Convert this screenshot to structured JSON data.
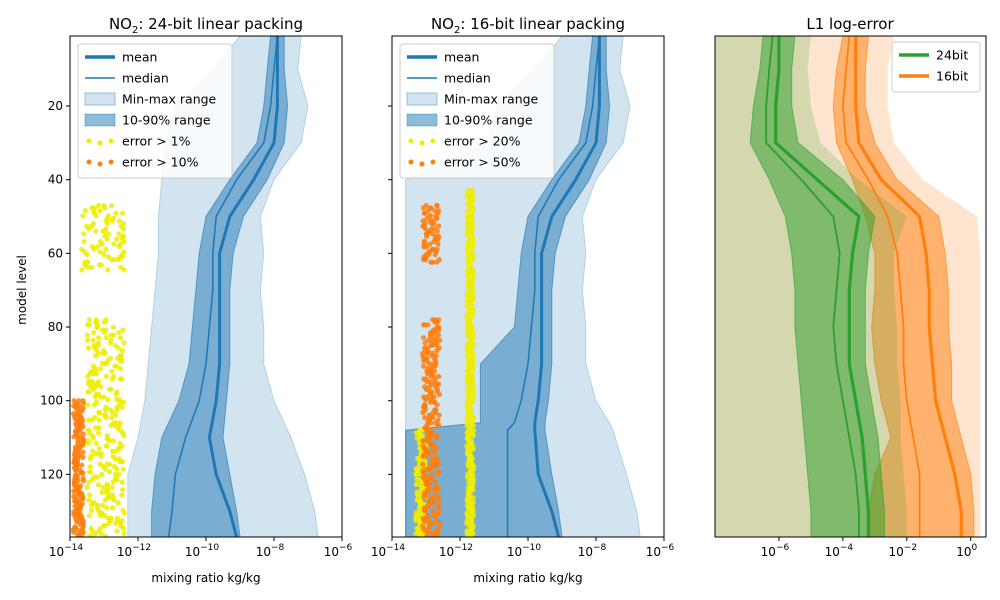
{
  "chart_data": [
    {
      "type": "area",
      "title": "NO₂: 24-bit linear packing",
      "title_main": "NO",
      "title_sub": "2",
      "title_rest": ": 24-bit linear packing",
      "xlabel": "mixing ratio kg/kg",
      "ylabel": "model level",
      "xscale": "log",
      "xlim": [
        1e-14,
        1e-06
      ],
      "ylim": [
        137,
        1
      ],
      "y_inverted": true,
      "xticks": [
        {
          "v": -14,
          "label": "10",
          "exp": "−14"
        },
        {
          "v": -12,
          "label": "10",
          "exp": "−12"
        },
        {
          "v": -10,
          "label": "10",
          "exp": "−10"
        },
        {
          "v": -8,
          "label": "10",
          "exp": "−8"
        },
        {
          "v": -6,
          "label": "10",
          "exp": "−6"
        }
      ],
      "yticks": [
        20,
        40,
        60,
        80,
        100,
        120
      ],
      "legend_placement": "top-left",
      "legend": [
        {
          "label": "mean",
          "kind": "line-thick",
          "color": "#1f77b4"
        },
        {
          "label": "median",
          "kind": "line-thin",
          "color": "#1f77b4"
        },
        {
          "label": "Min-max range",
          "kind": "patch",
          "color": "#1f77b4",
          "opacity": 0.2
        },
        {
          "label": "10-90% range",
          "kind": "patch",
          "color": "#1f77b4",
          "opacity": 0.5
        },
        {
          "label": "error > 1%",
          "kind": "dots",
          "color": "#eded00"
        },
        {
          "label": "error > 10%",
          "kind": "dots",
          "color": "#ff7f0e"
        }
      ],
      "levels": [
        1,
        10,
        20,
        30,
        40,
        50,
        60,
        70,
        80,
        90,
        100,
        110,
        120,
        130,
        137
      ],
      "min_log": [
        -9.0,
        -9.8,
        -10.9,
        -11.2,
        -11.3,
        -11.4,
        -11.4,
        -11.5,
        -11.6,
        -11.7,
        -11.8,
        -12.0,
        -12.3,
        -12.3,
        -12.3
      ],
      "p10_log": [
        -8.1,
        -8.2,
        -8.3,
        -8.5,
        -9.3,
        -10.0,
        -10.2,
        -10.3,
        -10.4,
        -10.5,
        -10.8,
        -11.3,
        -11.5,
        -11.6,
        -11.6
      ],
      "median_log": [
        -7.9,
        -8.0,
        -8.1,
        -8.3,
        -9.1,
        -9.7,
        -9.8,
        -9.8,
        -9.9,
        -10.0,
        -10.2,
        -10.6,
        -10.9,
        -11.0,
        -11.1
      ],
      "mean_log": [
        -7.9,
        -7.9,
        -7.9,
        -8.0,
        -8.6,
        -9.3,
        -9.6,
        -9.6,
        -9.6,
        -9.6,
        -9.7,
        -9.9,
        -9.7,
        -9.3,
        -9.1
      ],
      "p90_log": [
        -7.7,
        -7.7,
        -7.6,
        -7.7,
        -8.2,
        -8.9,
        -9.2,
        -9.3,
        -9.3,
        -9.3,
        -9.4,
        -9.5,
        -9.3,
        -9.1,
        -9.0
      ],
      "max_log": [
        -7.2,
        -7.3,
        -7.0,
        -7.2,
        -8.0,
        -8.4,
        -8.3,
        -8.4,
        -8.3,
        -8.3,
        -8.0,
        -7.5,
        -7.1,
        -6.8,
        -6.7
      ],
      "err_low": {
        "label": "error > 1%",
        "levels": [
          47,
          65
        ],
        "x_log": [
          -13.7,
          -12.4
        ]
      },
      "err_low_b": {
        "label": "error > 1%",
        "levels": [
          78,
          137
        ],
        "x_log": [
          -13.5,
          -12.4
        ]
      },
      "err_high": {
        "label": "error > 10%",
        "levels": [
          100,
          137
        ],
        "x_log": [
          -13.9,
          -13.6
        ]
      }
    },
    {
      "type": "area",
      "title": "NO₂: 16-bit linear packing",
      "title_main": "NO",
      "title_sub": "2",
      "title_rest": ": 16-bit linear packing",
      "xlabel": "mixing ratio kg/kg",
      "xscale": "log",
      "xlim": [
        1e-14,
        1e-06
      ],
      "ylim": [
        137,
        1
      ],
      "xticks": [
        {
          "v": -14,
          "label": "10",
          "exp": "−14"
        },
        {
          "v": -12,
          "label": "10",
          "exp": "−12"
        },
        {
          "v": -10,
          "label": "10",
          "exp": "−10"
        },
        {
          "v": -8,
          "label": "10",
          "exp": "−8"
        },
        {
          "v": -6,
          "label": "10",
          "exp": "−6"
        }
      ],
      "yticks": [
        20,
        40,
        60,
        80,
        100,
        120
      ],
      "legend_placement": "top-left",
      "legend": [
        {
          "label": "mean",
          "kind": "line-thick",
          "color": "#1f77b4"
        },
        {
          "label": "median",
          "kind": "line-thin",
          "color": "#1f77b4"
        },
        {
          "label": "Min-max range",
          "kind": "patch",
          "color": "#1f77b4",
          "opacity": 0.2
        },
        {
          "label": "10-90% range",
          "kind": "patch",
          "color": "#1f77b4",
          "opacity": 0.5
        },
        {
          "label": "error > 20%",
          "kind": "dots",
          "color": "#eded00"
        },
        {
          "label": "error > 50%",
          "kind": "dots",
          "color": "#ff7f0e"
        }
      ],
      "levels": [
        1,
        10,
        20,
        30,
        40,
        50,
        60,
        70,
        80,
        90,
        100,
        106,
        108,
        120,
        130,
        137
      ],
      "min_log": [
        -9.0,
        -9.8,
        -10.9,
        -11.2,
        -13.6,
        -13.6,
        -13.6,
        -13.6,
        -13.6,
        -13.6,
        -13.6,
        -13.6,
        -13.6,
        -13.6,
        -13.6,
        -13.6
      ],
      "p10_log": [
        -8.1,
        -8.2,
        -8.3,
        -8.5,
        -9.3,
        -10.0,
        -10.2,
        -10.3,
        -10.4,
        -11.4,
        -11.4,
        -11.4,
        -13.6,
        -13.6,
        -13.6,
        -13.6
      ],
      "median_log": [
        -7.9,
        -8.0,
        -8.1,
        -8.3,
        -9.1,
        -9.7,
        -9.8,
        -9.8,
        -9.9,
        -10.0,
        -10.2,
        -10.4,
        -10.6,
        -10.6,
        -10.6,
        -10.6
      ],
      "mean_log": [
        -7.9,
        -7.9,
        -7.9,
        -8.0,
        -8.6,
        -9.3,
        -9.6,
        -9.6,
        -9.6,
        -9.6,
        -9.7,
        -9.8,
        -9.8,
        -9.7,
        -9.3,
        -9.1
      ],
      "p90_log": [
        -7.7,
        -7.7,
        -7.6,
        -7.7,
        -8.2,
        -8.9,
        -9.2,
        -9.3,
        -9.3,
        -9.3,
        -9.4,
        -9.5,
        -9.5,
        -9.3,
        -9.1,
        -9.0
      ],
      "max_log": [
        -7.2,
        -7.3,
        -7.0,
        -7.2,
        -8.0,
        -8.4,
        -8.3,
        -8.4,
        -8.3,
        -8.3,
        -8.0,
        -7.6,
        -7.5,
        -7.1,
        -6.8,
        -6.7
      ],
      "err_low": {
        "label": "error > 20%",
        "levels": [
          43,
          137
        ],
        "x_log": [
          -11.8,
          -11.6
        ]
      },
      "err_low_b": {
        "label": "error > 20%",
        "levels": [
          108,
          137
        ],
        "x_log": [
          -13.3,
          -13.0
        ]
      },
      "err_high": {
        "label": "error > 50%",
        "levels": [
          47,
          63
        ],
        "x_log": [
          -13.1,
          -12.6
        ]
      },
      "err_high_b": {
        "label": "error > 50%",
        "levels": [
          78,
          137
        ],
        "x_log": [
          -13.1,
          -12.6
        ]
      }
    },
    {
      "type": "area",
      "title": "L1 log-error",
      "xscale": "log",
      "xlim": [
        1e-08,
        3
      ],
      "ylim": [
        137,
        1
      ],
      "xticks": [
        {
          "v": -6,
          "label": "10",
          "exp": "−6"
        },
        {
          "v": -4,
          "label": "10",
          "exp": "−4"
        },
        {
          "v": -2,
          "label": "10",
          "exp": "−2"
        },
        {
          "v": 0,
          "label": "10",
          "exp": "0"
        }
      ],
      "legend_placement": "top-right",
      "legend": [
        {
          "label": "24bit",
          "kind": "line-thick",
          "color": "#2ca02c"
        },
        {
          "label": "16bit",
          "kind": "line-thick",
          "color": "#ff7f0e"
        }
      ],
      "series": [
        {
          "name": "24bit",
          "color": "#2ca02c",
          "levels": [
            1,
            10,
            20,
            30,
            40,
            50,
            60,
            70,
            80,
            90,
            100,
            110,
            120,
            130,
            137
          ],
          "min_log": [
            -8,
            -8,
            -8,
            -8,
            -8,
            -8,
            -8,
            -8,
            -8,
            -8,
            -8,
            -8,
            -8,
            -8,
            -8
          ],
          "p10_log": [
            -6.5,
            -6.6,
            -6.8,
            -6.9,
            -6.3,
            -5.8,
            -5.6,
            -5.5,
            -5.5,
            -5.4,
            -5.3,
            -5.2,
            -5.1,
            -5.0,
            -5.0
          ],
          "median_log": [
            -6.2,
            -6.3,
            -6.4,
            -6.4,
            -5.3,
            -4.3,
            -4.1,
            -4.2,
            -4.3,
            -4.2,
            -4.0,
            -3.8,
            -3.6,
            -3.5,
            -3.5
          ],
          "mean_log": [
            -6.0,
            -6.0,
            -6.1,
            -6.1,
            -4.8,
            -3.5,
            -3.7,
            -3.8,
            -3.8,
            -3.8,
            -3.6,
            -3.4,
            -3.3,
            -3.2,
            -3.2
          ],
          "p90_log": [
            -5.5,
            -5.6,
            -5.6,
            -5.4,
            -4.0,
            -3.0,
            -3.2,
            -3.3,
            -3.3,
            -3.3,
            -3.1,
            -2.9,
            -2.8,
            -2.7,
            -2.7
          ],
          "max_log": [
            -5.0,
            -5.1,
            -5.0,
            -4.7,
            -3.5,
            -2.0,
            -2.4,
            -2.4,
            -2.3,
            -2.3,
            -2.2,
            -2.2,
            -2.1,
            -2.0,
            -2.0
          ]
        },
        {
          "name": "16bit",
          "color": "#ff7f0e",
          "levels": [
            1,
            10,
            20,
            30,
            40,
            50,
            60,
            70,
            80,
            90,
            100,
            110,
            120,
            130,
            137
          ],
          "min_log": [
            -8,
            -8,
            -8,
            -8,
            -8,
            -8,
            -8,
            -8,
            -8,
            -8,
            -8,
            -8,
            -8,
            -8,
            -8
          ],
          "p10_log": [
            -4.0,
            -4.2,
            -4.3,
            -4.2,
            -3.7,
            -3.3,
            -3.0,
            -3.0,
            -3.1,
            -3.0,
            -2.8,
            -2.5,
            -3.0,
            -3.2,
            -3.2
          ],
          "median_log": [
            -3.8,
            -3.9,
            -4.0,
            -3.9,
            -3.2,
            -2.6,
            -2.3,
            -2.2,
            -2.1,
            -2.1,
            -2.0,
            -1.8,
            -1.6,
            -1.6,
            -1.6
          ],
          "mean_log": [
            -3.6,
            -3.6,
            -3.6,
            -3.5,
            -2.8,
            -1.6,
            -1.4,
            -1.3,
            -1.3,
            -1.2,
            -1.1,
            -0.8,
            -0.5,
            -0.3,
            -0.3
          ],
          "p90_log": [
            -3.2,
            -3.3,
            -3.3,
            -3.0,
            -2.3,
            -1.0,
            -0.8,
            -0.7,
            -0.7,
            -0.6,
            -0.6,
            -0.3,
            0.0,
            0.1,
            0.1
          ],
          "max_log": [
            -2.4,
            -2.6,
            -2.6,
            -2.4,
            -1.5,
            0.2,
            0.3,
            0.3,
            0.3,
            0.3,
            0.3,
            0.3,
            0.3,
            0.3,
            0.3
          ]
        }
      ]
    }
  ]
}
